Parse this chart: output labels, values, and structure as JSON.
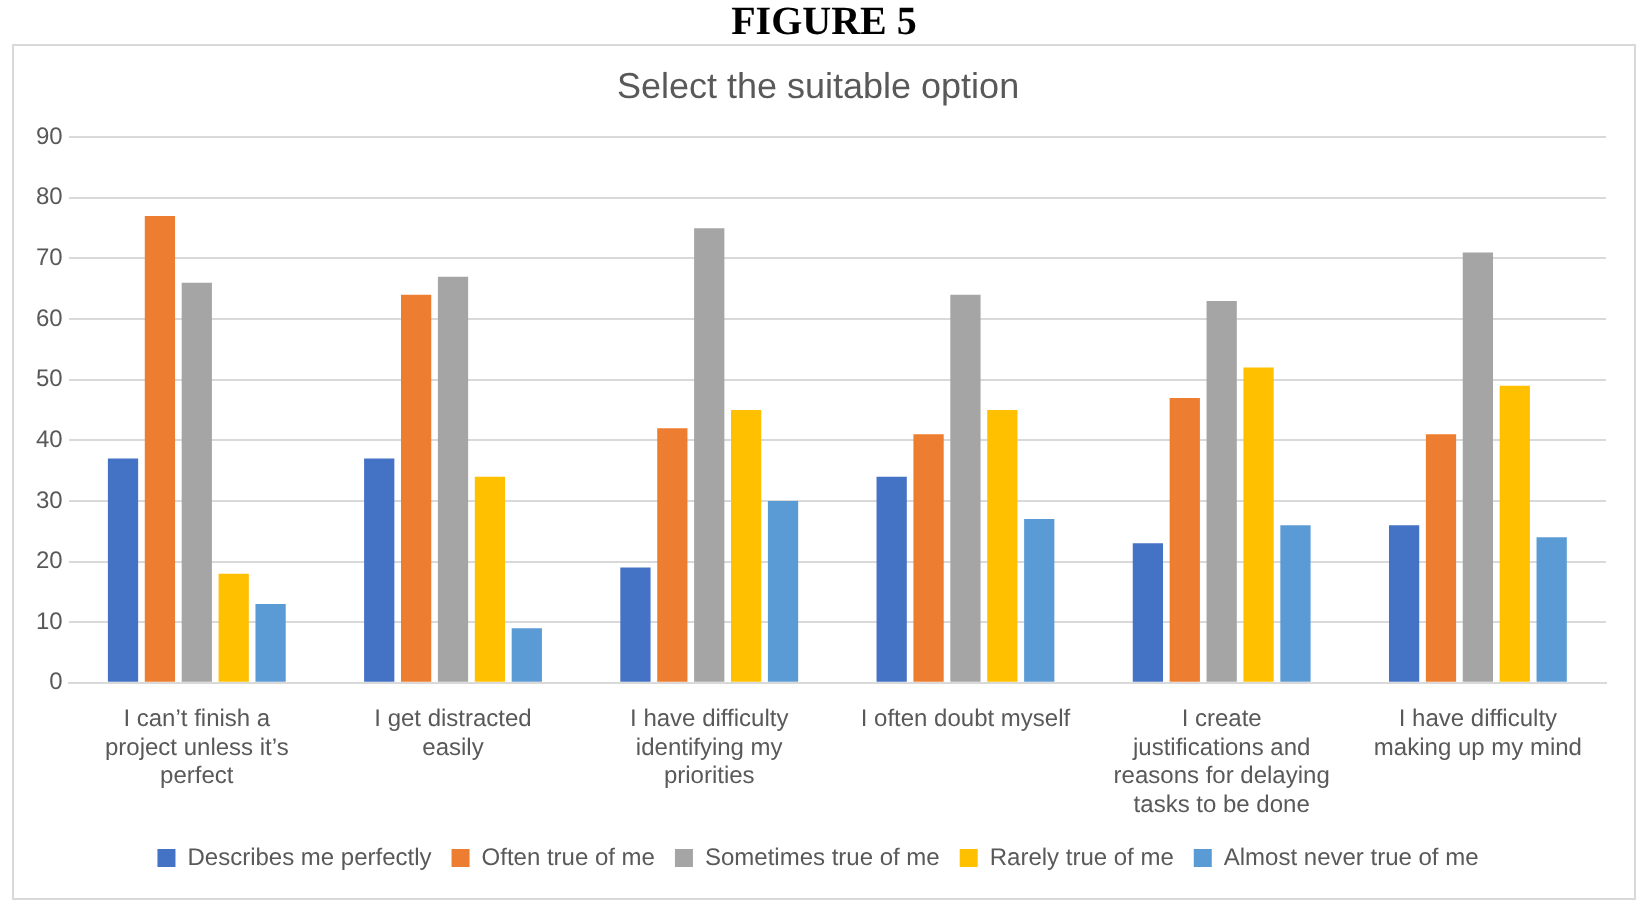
{
  "chart_data": {
    "type": "bar",
    "title": "Select the suitable option",
    "annotations": [
      "FIGURE 5"
    ],
    "categories": [
      "I can’t finish a project unless it’s perfect",
      "I get distracted easily",
      "I have difficulty identifying my priorities",
      "I often doubt myself",
      "I create justifications and reasons for delaying tasks to be done",
      "I have difficulty making up my mind"
    ],
    "series": [
      {
        "name": "Describes me perfectly",
        "color": "#4472c4",
        "values": [
          37,
          37,
          19,
          34,
          23,
          26
        ]
      },
      {
        "name": "Often true of me",
        "color": "#ed7d31",
        "values": [
          77,
          64,
          42,
          41,
          47,
          41
        ]
      },
      {
        "name": "Sometimes true of me",
        "color": "#a5a5a5",
        "values": [
          66,
          67,
          75,
          64,
          63,
          71
        ]
      },
      {
        "name": "Rarely true of me",
        "color": "#ffc000",
        "values": [
          18,
          34,
          45,
          45,
          52,
          49
        ]
      },
      {
        "name": "Almost never true of me",
        "color": "#5b9bd5",
        "values": [
          13,
          9,
          30,
          27,
          26,
          24
        ]
      }
    ],
    "ylim": [
      0,
      90
    ],
    "yticks": [
      0,
      10,
      20,
      30,
      40,
      50,
      60,
      70,
      80,
      90
    ],
    "grid": "y",
    "legend": "bottom"
  }
}
